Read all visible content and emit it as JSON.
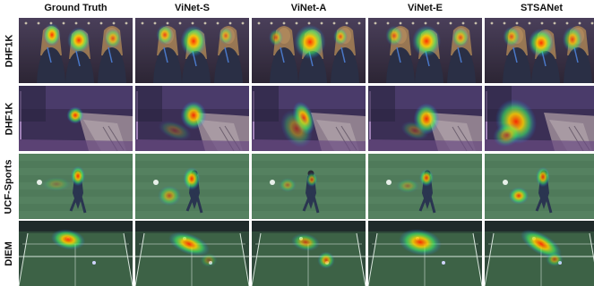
{
  "figure": {
    "columns": [
      "Ground Truth",
      "ViNet-S",
      "ViNet-A",
      "ViNet-E",
      "STSANet"
    ],
    "rows": [
      {
        "dataset": "DHF1K",
        "scene": "crowd"
      },
      {
        "dataset": "DHF1K",
        "scene": "bench"
      },
      {
        "dataset": "UCF-Sports",
        "scene": "soccer"
      },
      {
        "dataset": "DIEM",
        "scene": "tennis"
      }
    ]
  }
}
